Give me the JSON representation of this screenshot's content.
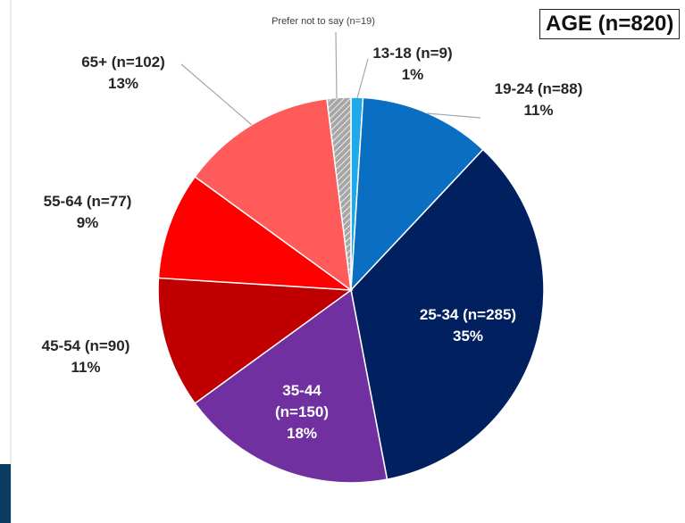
{
  "chart_data": {
    "type": "pie",
    "title": "AGE (n=820)",
    "categories": [
      "13-18 (n=9)",
      "19-24 (n=88)",
      "25-34 (n=285)",
      "35-44 (n=150)",
      "45-54 (n=90)",
      "55-64 (n=77)",
      "65+ (n=102)",
      "Prefer not to say (n=19)"
    ],
    "values": [
      1,
      11,
      35,
      18,
      11,
      9,
      13,
      2
    ],
    "value_labels": [
      "1%",
      "11%",
      "35%",
      "18%",
      "11%",
      "9%",
      "13%",
      null
    ],
    "colors": [
      "#1fa8ea",
      "#0a6fc2",
      "#002060",
      "#7030a0",
      "#c00000",
      "#ff0000",
      "#ff5b5b",
      "#a6a6a6"
    ]
  }
}
